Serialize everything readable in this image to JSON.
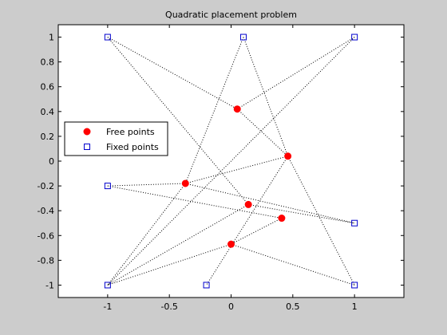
{
  "chart_data": {
    "type": "scatter",
    "title": "Quadratic placement problem",
    "xlabel": "",
    "ylabel": "",
    "xlim": [
      -1.4,
      1.4
    ],
    "ylim": [
      -1.1,
      1.1
    ],
    "xticks": [
      -1,
      -0.5,
      0,
      0.5,
      1
    ],
    "xtick_labels": [
      "-1",
      "-0.5",
      "0",
      "0.5",
      "1"
    ],
    "yticks": [
      1,
      0.8,
      0.6,
      0.4,
      0.2,
      0,
      -0.2,
      -0.4,
      -0.6,
      -0.8,
      -1
    ],
    "ytick_labels": [
      "1",
      "0.8",
      "0.6",
      "0.4",
      "0.2",
      "0",
      "-0.2",
      "-0.4",
      "-0.6",
      "-0.8",
      "-1"
    ],
    "grid": false,
    "legend_position": "middle-left",
    "series": [
      {
        "name": "Free points",
        "marker": "filled-circle",
        "color": "#ff0000",
        "points": [
          [
            0.05,
            0.42
          ],
          [
            0.46,
            0.04
          ],
          [
            -0.37,
            -0.18
          ],
          [
            0.14,
            -0.35
          ],
          [
            0.41,
            -0.46
          ],
          [
            0.0,
            -0.67
          ]
        ]
      },
      {
        "name": "Fixed points",
        "marker": "open-square",
        "color": "#0000cc",
        "points": [
          [
            -1,
            1
          ],
          [
            0.1,
            1
          ],
          [
            1,
            1
          ],
          [
            -1,
            -0.2
          ],
          [
            1,
            -0.5
          ],
          [
            -1,
            -1
          ],
          [
            -0.2,
            -1
          ],
          [
            1,
            -1
          ]
        ]
      }
    ],
    "links": [
      [
        [
          -1,
          1
        ],
        [
          0.05,
          0.42
        ]
      ],
      [
        [
          -1,
          1
        ],
        [
          0.14,
          -0.35
        ]
      ],
      [
        [
          0.1,
          1
        ],
        [
          0.46,
          0.04
        ]
      ],
      [
        [
          0.1,
          1
        ],
        [
          -0.37,
          -0.18
        ]
      ],
      [
        [
          1,
          1
        ],
        [
          0.05,
          0.42
        ]
      ],
      [
        [
          1,
          1
        ],
        [
          -1,
          -1
        ]
      ],
      [
        [
          0.05,
          0.42
        ],
        [
          0.46,
          0.04
        ]
      ],
      [
        [
          0.46,
          0.04
        ],
        [
          -0.37,
          -0.18
        ]
      ],
      [
        [
          0.46,
          0.04
        ],
        [
          1,
          -1
        ]
      ],
      [
        [
          0.46,
          0.04
        ],
        [
          -0.2,
          -1
        ]
      ],
      [
        [
          -1,
          -0.2
        ],
        [
          -0.37,
          -0.18
        ]
      ],
      [
        [
          -1,
          -0.2
        ],
        [
          0.41,
          -0.46
        ]
      ],
      [
        [
          -0.37,
          -0.18
        ],
        [
          1,
          -0.5
        ]
      ],
      [
        [
          -0.37,
          -0.18
        ],
        [
          -1,
          -1
        ]
      ],
      [
        [
          0.14,
          -0.35
        ],
        [
          1,
          -0.5
        ]
      ],
      [
        [
          0.14,
          -0.35
        ],
        [
          -1,
          -1
        ]
      ],
      [
        [
          0.41,
          -0.46
        ],
        [
          0.0,
          -0.67
        ]
      ],
      [
        [
          0.0,
          -0.67
        ],
        [
          -1,
          -1
        ]
      ],
      [
        [
          0.0,
          -0.67
        ],
        [
          1,
          -1
        ]
      ]
    ],
    "colors": {
      "figure_bg": "#cccccc",
      "axes_bg": "#ffffff",
      "link": "#000000"
    }
  }
}
